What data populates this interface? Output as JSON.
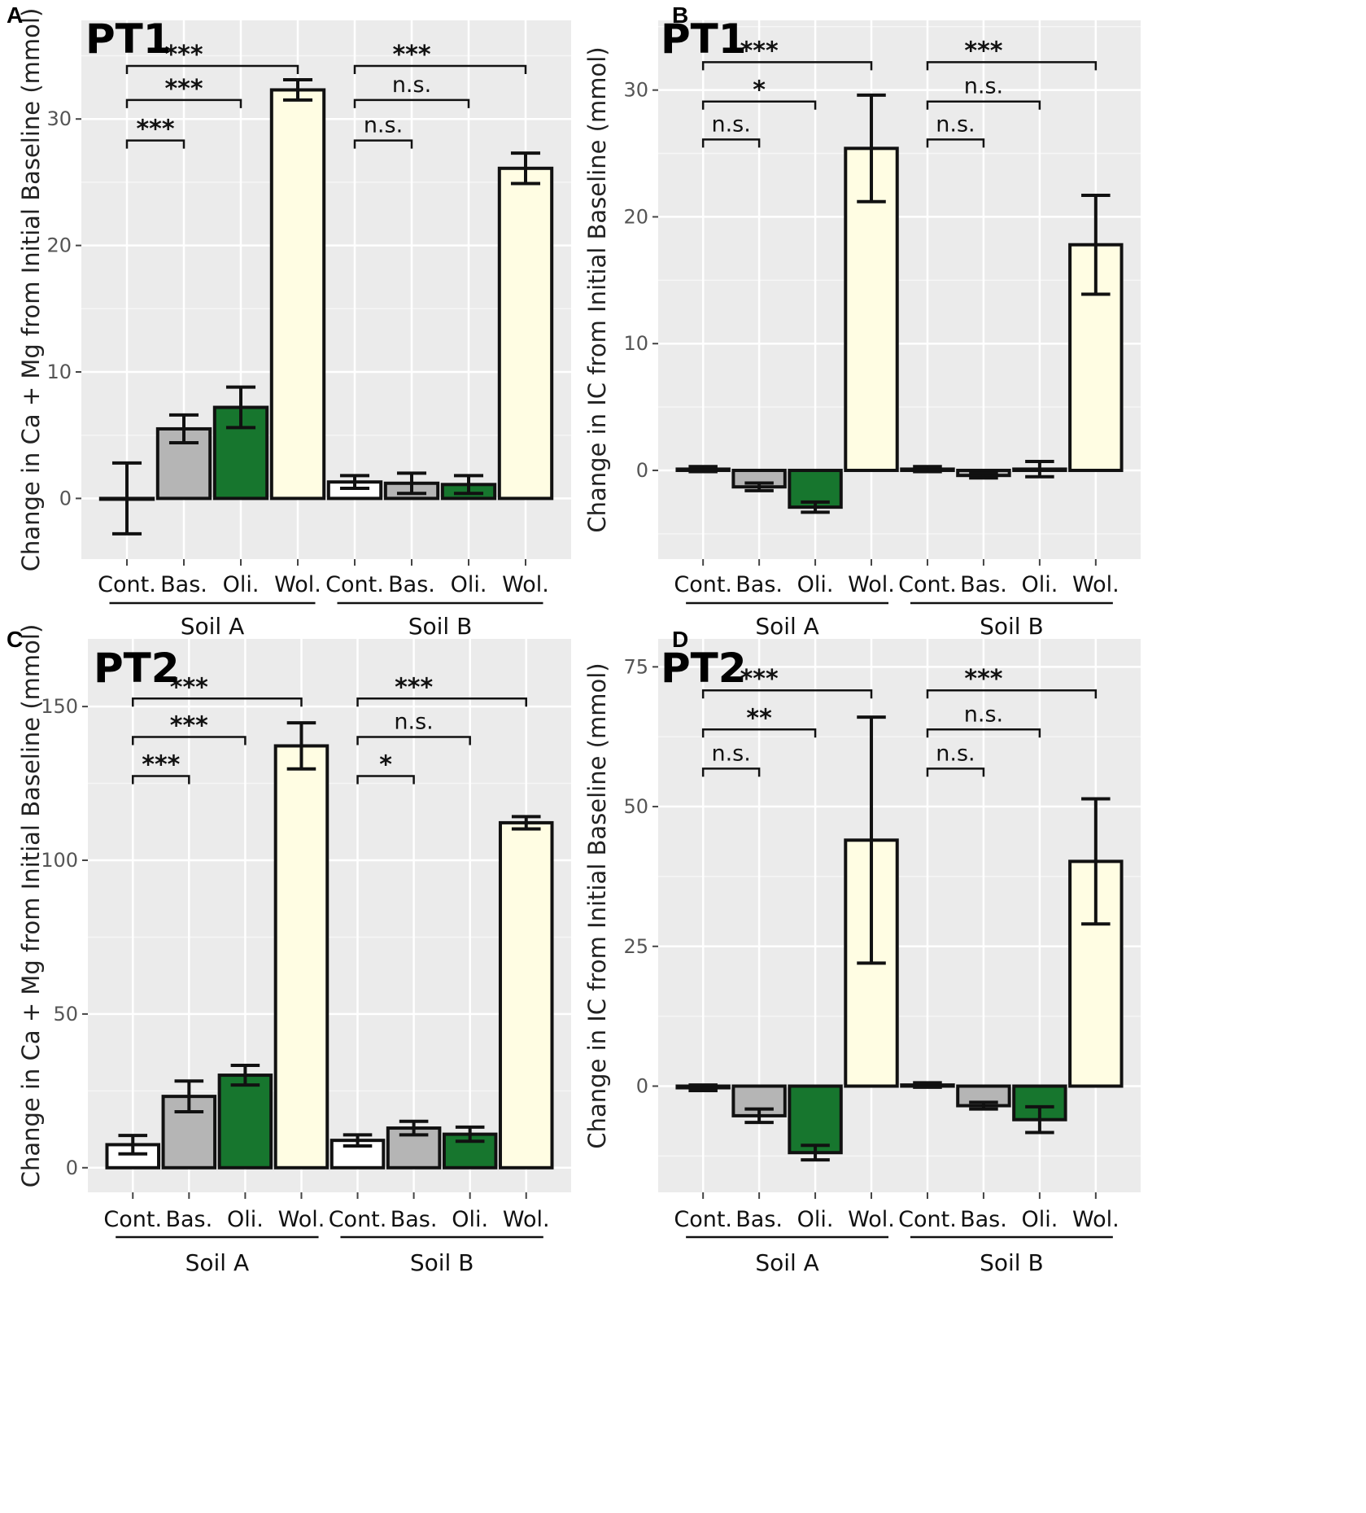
{
  "chart_data": [
    {
      "id": "A",
      "type": "bar",
      "panel_label": "A",
      "title": "PT1",
      "ylabel": "Change in Ca + Mg from Initial Baseline (mmol)",
      "ylim": [
        -4.8,
        37.8
      ],
      "yticks": [
        0,
        10,
        20,
        30
      ],
      "categories": [
        "Cont.",
        "Bas.",
        "Oli.",
        "Wol.",
        "Cont.",
        "Bas.",
        "Oli.",
        "Wol."
      ],
      "groups": [
        {
          "label": "Soil A",
          "start": 0,
          "end": 3
        },
        {
          "label": "Soil B",
          "start": 4,
          "end": 7
        }
      ],
      "values": [
        0,
        5.5,
        7.2,
        32.3,
        1.3,
        1.2,
        1.1,
        26.1
      ],
      "errors": [
        2.8,
        1.1,
        1.6,
        0.8,
        0.5,
        0.8,
        0.7,
        1.2
      ],
      "colors": [
        "#ffffff",
        "#b5b5b5",
        "#17762e",
        "#fffde3",
        "#ffffff",
        "#b5b5b5",
        "#17762e",
        "#fffde3"
      ],
      "comparisons": [
        {
          "from": 0,
          "to": 1,
          "y": 28.3,
          "label": "***"
        },
        {
          "from": 0,
          "to": 2,
          "y": 31.5,
          "label": "***"
        },
        {
          "from": 0,
          "to": 3,
          "y": 34.2,
          "label": "***"
        },
        {
          "from": 4,
          "to": 5,
          "y": 28.3,
          "label": "n.s."
        },
        {
          "from": 4,
          "to": 6,
          "y": 31.5,
          "label": "n.s."
        },
        {
          "from": 4,
          "to": 7,
          "y": 34.2,
          "label": "***"
        }
      ]
    },
    {
      "id": "B",
      "type": "bar",
      "panel_label": "B",
      "title": "PT1",
      "ylabel": "Change in IC from Initial Baseline (mmol)",
      "ylim": [
        -7,
        35.5
      ],
      "yticks": [
        0,
        10,
        20,
        30
      ],
      "categories": [
        "Cont.",
        "Bas.",
        "Oli.",
        "Wol.",
        "Cont.",
        "Bas.",
        "Oli.",
        "Wol."
      ],
      "groups": [
        {
          "label": "Soil A",
          "start": 0,
          "end": 3
        },
        {
          "label": "Soil B",
          "start": 4,
          "end": 7
        }
      ],
      "values": [
        0.1,
        -1.3,
        -2.9,
        25.4,
        0.1,
        -0.4,
        0.1,
        17.8
      ],
      "errors": [
        0.2,
        0.3,
        0.4,
        4.2,
        0.2,
        0.2,
        0.6,
        3.9
      ],
      "colors": [
        "#ffffff",
        "#b5b5b5",
        "#17762e",
        "#fffde3",
        "#ffffff",
        "#b5b5b5",
        "#17762e",
        "#fffde3"
      ],
      "comparisons": [
        {
          "from": 0,
          "to": 1,
          "y": 26.1,
          "label": "n.s."
        },
        {
          "from": 0,
          "to": 2,
          "y": 29.1,
          "label": "*"
        },
        {
          "from": 0,
          "to": 3,
          "y": 32.2,
          "label": "***"
        },
        {
          "from": 4,
          "to": 5,
          "y": 26.1,
          "label": "n.s."
        },
        {
          "from": 4,
          "to": 6,
          "y": 29.1,
          "label": "n.s."
        },
        {
          "from": 4,
          "to": 7,
          "y": 32.2,
          "label": "***"
        }
      ]
    },
    {
      "id": "C",
      "type": "bar",
      "panel_label": "C",
      "title": "PT2",
      "ylabel": "Change in Ca + Mg from Initial Baseline (mmol)",
      "ylim": [
        -8,
        172
      ],
      "yticks": [
        0,
        50,
        100,
        150
      ],
      "categories": [
        "Cont.",
        "Bas.",
        "Oli.",
        "Wol.",
        "Cont.",
        "Bas.",
        "Oli.",
        "Wol."
      ],
      "groups": [
        {
          "label": "Soil A",
          "start": 0,
          "end": 3
        },
        {
          "label": "Soil B",
          "start": 4,
          "end": 7
        }
      ],
      "values": [
        7.5,
        23.2,
        30.1,
        137.2,
        8.9,
        12.9,
        10.9,
        112.2
      ],
      "errors": [
        3.0,
        5.0,
        3.2,
        7.5,
        1.8,
        2.2,
        2.3,
        2.0
      ],
      "colors": [
        "#ffffff",
        "#b5b5b5",
        "#17762e",
        "#fffde3",
        "#ffffff",
        "#b5b5b5",
        "#17762e",
        "#fffde3"
      ],
      "comparisons": [
        {
          "from": 0,
          "to": 1,
          "y": 127.4,
          "label": "***"
        },
        {
          "from": 0,
          "to": 2,
          "y": 140.1,
          "label": "***"
        },
        {
          "from": 0,
          "to": 3,
          "y": 152.6,
          "label": "***"
        },
        {
          "from": 4,
          "to": 5,
          "y": 127.4,
          "label": "*"
        },
        {
          "from": 4,
          "to": 6,
          "y": 140.1,
          "label": "n.s."
        },
        {
          "from": 4,
          "to": 7,
          "y": 152.6,
          "label": "***"
        }
      ]
    },
    {
      "id": "D",
      "type": "bar",
      "panel_label": "D",
      "title": "PT2",
      "ylabel": "Change in IC from Initial Baseline (mmol)",
      "ylim": [
        -19,
        80
      ],
      "yticks": [
        0,
        25,
        50,
        75
      ],
      "categories": [
        "Cont.",
        "Bas.",
        "Oli.",
        "Wol.",
        "Cont.",
        "Bas.",
        "Oli.",
        "Wol."
      ],
      "groups": [
        {
          "label": "Soil A",
          "start": 0,
          "end": 3
        },
        {
          "label": "Soil B",
          "start": 4,
          "end": 7
        }
      ],
      "values": [
        -0.3,
        -5.3,
        -11.9,
        44.0,
        0.2,
        -3.5,
        -6.0,
        40.2
      ],
      "errors": [
        0.5,
        1.2,
        1.3,
        22.0,
        0.4,
        0.6,
        2.3,
        11.2
      ],
      "colors": [
        "#ffffff",
        "#b5b5b5",
        "#17762e",
        "#fffde3",
        "#ffffff",
        "#b5b5b5",
        "#17762e",
        "#fffde3"
      ],
      "comparisons": [
        {
          "from": 0,
          "to": 1,
          "y": 56.8,
          "label": "n.s."
        },
        {
          "from": 0,
          "to": 2,
          "y": 63.8,
          "label": "**"
        },
        {
          "from": 0,
          "to": 3,
          "y": 70.8,
          "label": "***"
        },
        {
          "from": 4,
          "to": 5,
          "y": 56.8,
          "label": "n.s."
        },
        {
          "from": 4,
          "to": 6,
          "y": 63.8,
          "label": "n.s."
        },
        {
          "from": 4,
          "to": 7,
          "y": 70.8,
          "label": "***"
        }
      ]
    }
  ]
}
